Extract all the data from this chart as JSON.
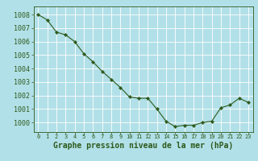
{
  "x": [
    0,
    1,
    2,
    3,
    4,
    5,
    6,
    7,
    8,
    9,
    10,
    11,
    12,
    13,
    14,
    15,
    16,
    17,
    18,
    19,
    20,
    21,
    22,
    23
  ],
  "y": [
    1008.0,
    1007.6,
    1006.7,
    1006.5,
    1006.0,
    1005.1,
    1004.5,
    1003.8,
    1003.2,
    1002.6,
    1001.9,
    1001.8,
    1001.8,
    1001.0,
    1000.1,
    999.7,
    999.8,
    999.8,
    1000.0,
    1000.1,
    1001.1,
    1001.3,
    1001.8,
    1001.5
  ],
  "line_color": "#2d5a1b",
  "marker": "D",
  "marker_size": 2.2,
  "background_color": "#b2e0e8",
  "grid_color": "#ffffff",
  "ylabel_ticks": [
    1000,
    1001,
    1002,
    1003,
    1004,
    1005,
    1006,
    1007,
    1008
  ],
  "ylim": [
    999.3,
    1008.6
  ],
  "xlim": [
    -0.5,
    23.5
  ],
  "xlabel": "Graphe pression niveau de la mer (hPa)",
  "xlabel_fontsize": 7,
  "tick_fontsize": 6,
  "tick_color": "#2d5a1b",
  "label_color": "#2d5a1b",
  "spine_color": "#2d5a1b"
}
